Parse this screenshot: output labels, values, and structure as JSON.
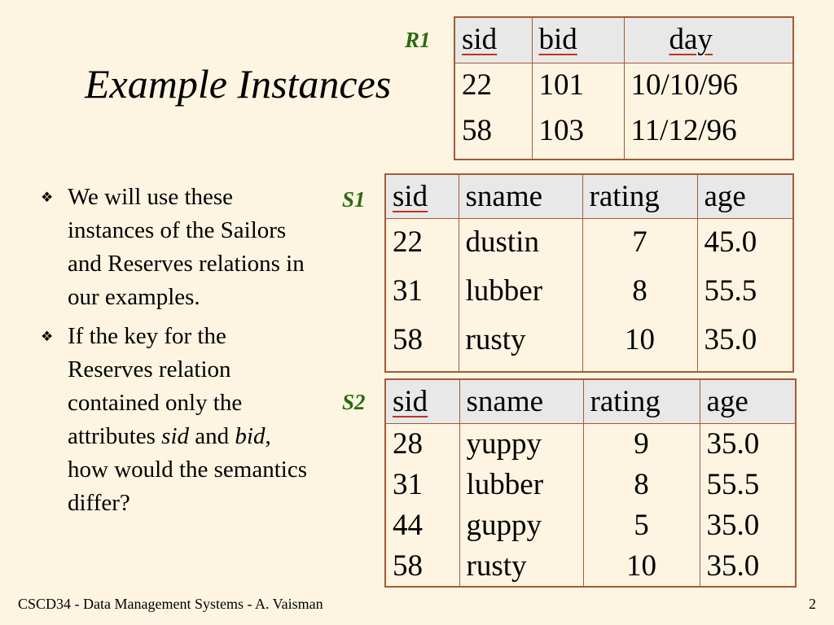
{
  "title": "Example Instances",
  "bullets": [
    {
      "segments": [
        {
          "text": "We will use these instances of the Sailors and Reserves relations in our examples.",
          "italic": false
        }
      ]
    },
    {
      "segments": [
        {
          "text": "If the key for the Reserves relation contained only the attributes ",
          "italic": false
        },
        {
          "text": "sid",
          "italic": true
        },
        {
          "text": " and ",
          "italic": false
        },
        {
          "text": "bid",
          "italic": true
        },
        {
          "text": ", how would the semantics differ?",
          "italic": false
        }
      ]
    }
  ],
  "tables": {
    "r1": {
      "label": "R1",
      "columns": [
        {
          "name": "sid",
          "key": true
        },
        {
          "name": "bid",
          "key": true
        },
        {
          "name": "day",
          "key": true
        }
      ],
      "rows": [
        [
          "22",
          "101",
          "10/10/96"
        ],
        [
          "58",
          "103",
          "11/12/96"
        ]
      ]
    },
    "s1": {
      "label": "S1",
      "columns": [
        {
          "name": "sid",
          "key": true
        },
        {
          "name": "sname",
          "key": false
        },
        {
          "name": "rating",
          "key": false
        },
        {
          "name": "age",
          "key": false
        }
      ],
      "rows": [
        [
          "22",
          "dustin",
          "7",
          "45.0"
        ],
        [
          "31",
          "lubber",
          "8",
          "55.5"
        ],
        [
          "58",
          "rusty",
          "10",
          "35.0"
        ]
      ]
    },
    "s2": {
      "label": "S2",
      "columns": [
        {
          "name": "sid",
          "key": true
        },
        {
          "name": "sname",
          "key": false
        },
        {
          "name": "rating",
          "key": false
        },
        {
          "name": "age",
          "key": false
        }
      ],
      "rows": [
        [
          "28",
          "yuppy",
          "9",
          "35.0"
        ],
        [
          "31",
          "lubber",
          "8",
          "55.5"
        ],
        [
          "44",
          "guppy",
          "5",
          "35.0"
        ],
        [
          "58",
          "rusty",
          "10",
          "35.0"
        ]
      ]
    }
  },
  "footer": {
    "left": "CSCD34 - Data Management Systems - A. Vaisman",
    "page": "2"
  },
  "colors": {
    "background": "#fdf5e2",
    "label": "#2a6a0e",
    "table_border": "#a35a35",
    "key_underline": "#c0321e",
    "header_fill": "#e8e8e8"
  }
}
